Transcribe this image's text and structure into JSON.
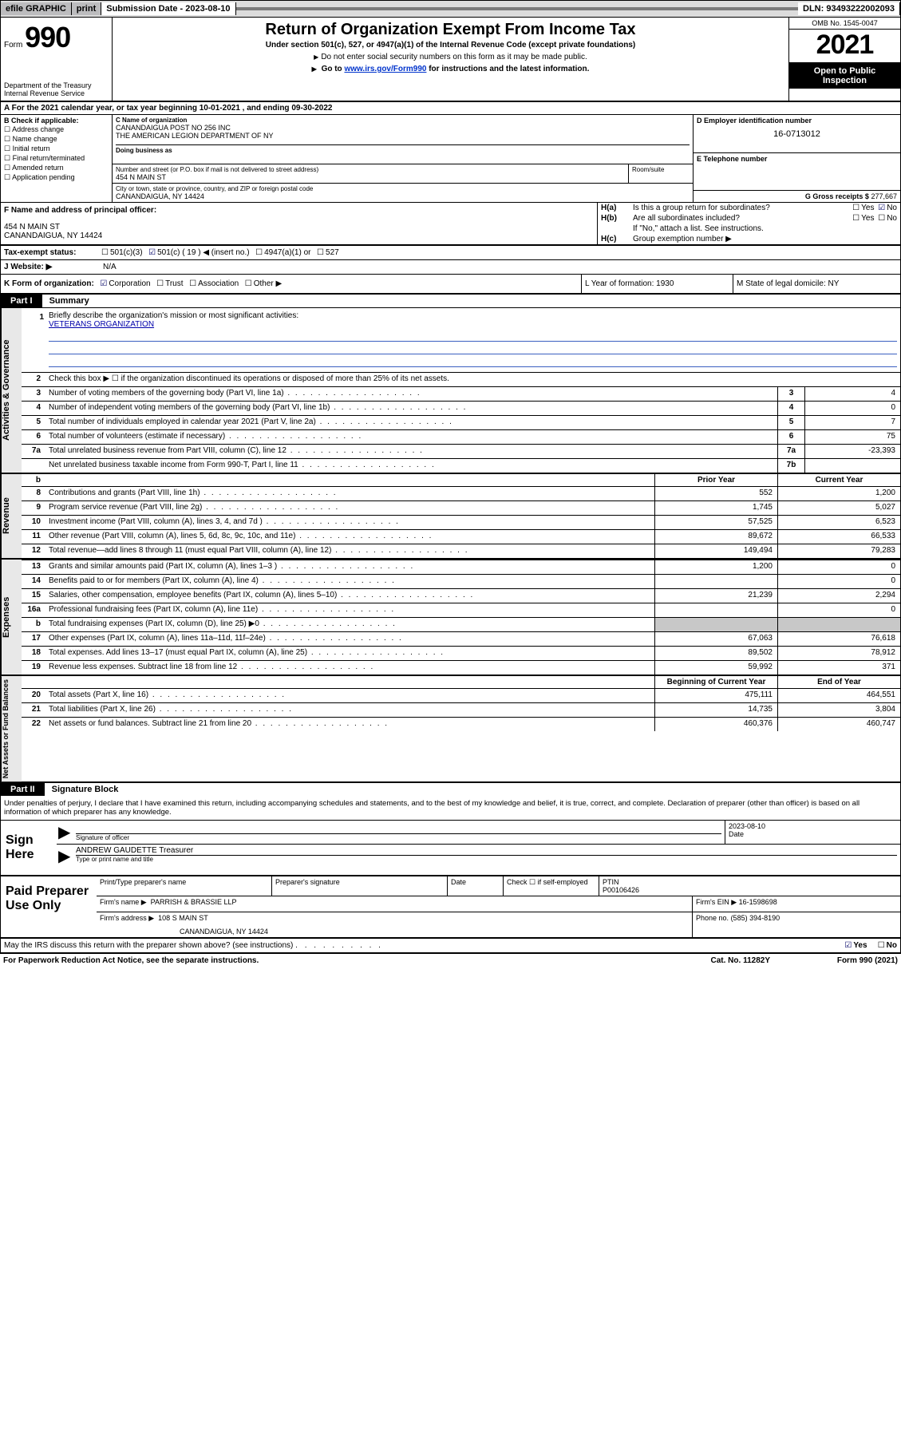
{
  "topbar": {
    "efile": "efile GRAPHIC",
    "print": "print",
    "sub_label": "Submission Date - 2023-08-10",
    "dln": "DLN: 93493222002093"
  },
  "header": {
    "form_word": "Form",
    "form_num": "990",
    "dept": "Department of the Treasury",
    "irs": "Internal Revenue Service",
    "title": "Return of Organization Exempt From Income Tax",
    "sub": "Under section 501(c), 527, or 4947(a)(1) of the Internal Revenue Code (except private foundations)",
    "note1": "Do not enter social security numbers on this form as it may be made public.",
    "note2_pre": "Go to ",
    "note2_link": "www.irs.gov/Form990",
    "note2_post": " for instructions and the latest information.",
    "omb": "OMB No. 1545-0047",
    "year": "2021",
    "open1": "Open to Public",
    "open2": "Inspection"
  },
  "row_a": "A For the 2021 calendar year, or tax year beginning 10-01-2021   , and ending 09-30-2022",
  "col_b": {
    "hdr": "B Check if applicable:",
    "items": [
      "Address change",
      "Name change",
      "Initial return",
      "Final return/terminated",
      "Amended return",
      "Application pending"
    ]
  },
  "col_c": {
    "lbl_name": "C Name of organization",
    "name1": "CANANDAIGUA POST NO 256 INC",
    "name2": "THE AMERICAN LEGION DEPARTMENT OF NY",
    "lbl_dba": "Doing business as",
    "lbl_addr": "Number and street (or P.O. box if mail is not delivered to street address)",
    "addr": "454 N MAIN ST",
    "lbl_room": "Room/suite",
    "lbl_city": "City or town, state or province, country, and ZIP or foreign postal code",
    "city": "CANANDAIGUA, NY  14424"
  },
  "col_d": {
    "lbl": "D Employer identification number",
    "val": "16-0713012"
  },
  "col_e": {
    "lbl": "E Telephone number",
    "val": ""
  },
  "col_g": {
    "lbl": "G Gross receipts $",
    "val": "277,667"
  },
  "col_f": {
    "lbl": "F Name and address of principal officer:",
    "l1": "454 N MAIN ST",
    "l2": "CANANDAIGUA, NY  14424"
  },
  "col_h": {
    "ha_k": "H(a)",
    "ha_q": "Is this a group return for subordinates?",
    "ha_yes": "Yes",
    "ha_no": "No",
    "hb_k": "H(b)",
    "hb_q": "Are all subordinates included?",
    "hb_yes": "Yes",
    "hb_no": "No",
    "hb_note": "If \"No,\" attach a list. See instructions.",
    "hc_k": "H(c)",
    "hc_q": "Group exemption number ▶"
  },
  "row_i": {
    "lbl": "Tax-exempt status:",
    "o1": "501(c)(3)",
    "o2": "501(c) ( 19 ) ◀ (insert no.)",
    "o3": "4947(a)(1) or",
    "o4": "527"
  },
  "row_j": {
    "lbl": "J   Website: ▶",
    "val": "N/A"
  },
  "row_k": {
    "lbl": "K Form of organization:",
    "o1": "Corporation",
    "o2": "Trust",
    "o3": "Association",
    "o4": "Other ▶"
  },
  "row_l": {
    "txt": "L Year of formation: 1930"
  },
  "row_m": {
    "txt": "M State of legal domicile: NY"
  },
  "part1": {
    "hdr": "Part I",
    "title": "Summary"
  },
  "sections": {
    "gov": "Activities & Governance",
    "rev": "Revenue",
    "exp": "Expenses",
    "net": "Net Assets or Fund Balances"
  },
  "mission": {
    "num": "1",
    "lbl": "Briefly describe the organization's mission or most significant activities:",
    "txt": "VETERANS ORGANIZATION"
  },
  "line2": {
    "num": "2",
    "txt": "Check this box ▶ ☐  if the organization discontinued its operations or disposed of more than 25% of its net assets."
  },
  "gov_lines": [
    {
      "num": "3",
      "txt": "Number of voting members of the governing body (Part VI, line 1a)",
      "box": "3",
      "val": "4"
    },
    {
      "num": "4",
      "txt": "Number of independent voting members of the governing body (Part VI, line 1b)",
      "box": "4",
      "val": "0"
    },
    {
      "num": "5",
      "txt": "Total number of individuals employed in calendar year 2021 (Part V, line 2a)",
      "box": "5",
      "val": "7"
    },
    {
      "num": "6",
      "txt": "Total number of volunteers (estimate if necessary)",
      "box": "6",
      "val": "75"
    },
    {
      "num": "7a",
      "txt": "Total unrelated business revenue from Part VIII, column (C), line 12",
      "box": "7a",
      "val": "-23,393"
    },
    {
      "num": "",
      "txt": "Net unrelated business taxable income from Form 990-T, Part I, line 11",
      "box": "7b",
      "val": ""
    }
  ],
  "col_hdrs": {
    "b": "b",
    "prior": "Prior Year",
    "curr": "Current Year"
  },
  "rev_lines": [
    {
      "num": "8",
      "txt": "Contributions and grants (Part VIII, line 1h)",
      "p": "552",
      "c": "1,200"
    },
    {
      "num": "9",
      "txt": "Program service revenue (Part VIII, line 2g)",
      "p": "1,745",
      "c": "5,027"
    },
    {
      "num": "10",
      "txt": "Investment income (Part VIII, column (A), lines 3, 4, and 7d )",
      "p": "57,525",
      "c": "6,523"
    },
    {
      "num": "11",
      "txt": "Other revenue (Part VIII, column (A), lines 5, 6d, 8c, 9c, 10c, and 11e)",
      "p": "89,672",
      "c": "66,533"
    },
    {
      "num": "12",
      "txt": "Total revenue—add lines 8 through 11 (must equal Part VIII, column (A), line 12)",
      "p": "149,494",
      "c": "79,283"
    }
  ],
  "exp_lines": [
    {
      "num": "13",
      "txt": "Grants and similar amounts paid (Part IX, column (A), lines 1–3 )",
      "p": "1,200",
      "c": "0"
    },
    {
      "num": "14",
      "txt": "Benefits paid to or for members (Part IX, column (A), line 4)",
      "p": "",
      "c": "0"
    },
    {
      "num": "15",
      "txt": "Salaries, other compensation, employee benefits (Part IX, column (A), lines 5–10)",
      "p": "21,239",
      "c": "2,294"
    },
    {
      "num": "16a",
      "txt": "Professional fundraising fees (Part IX, column (A), line 11e)",
      "p": "",
      "c": "0"
    },
    {
      "num": "b",
      "txt": "Total fundraising expenses (Part IX, column (D), line 25) ▶0",
      "p": "",
      "c": "",
      "shade": true
    },
    {
      "num": "17",
      "txt": "Other expenses (Part IX, column (A), lines 11a–11d, 11f–24e)",
      "p": "67,063",
      "c": "76,618"
    },
    {
      "num": "18",
      "txt": "Total expenses. Add lines 13–17 (must equal Part IX, column (A), line 25)",
      "p": "89,502",
      "c": "78,912"
    },
    {
      "num": "19",
      "txt": "Revenue less expenses. Subtract line 18 from line 12",
      "p": "59,992",
      "c": "371"
    }
  ],
  "net_hdrs": {
    "beg": "Beginning of Current Year",
    "end": "End of Year"
  },
  "net_lines": [
    {
      "num": "20",
      "txt": "Total assets (Part X, line 16)",
      "p": "475,111",
      "c": "464,551"
    },
    {
      "num": "21",
      "txt": "Total liabilities (Part X, line 26)",
      "p": "14,735",
      "c": "3,804"
    },
    {
      "num": "22",
      "txt": "Net assets or fund balances. Subtract line 21 from line 20",
      "p": "460,376",
      "c": "460,747"
    }
  ],
  "part2": {
    "hdr": "Part II",
    "title": "Signature Block"
  },
  "penalty": "Under penalties of perjury, I declare that I have examined this return, including accompanying schedules and statements, and to the best of my knowledge and belief, it is true, correct, and complete. Declaration of preparer (other than officer) is based on all information of which preparer has any knowledge.",
  "sign": {
    "here": "Sign Here",
    "sig_lbl": "Signature of officer",
    "date": "2023-08-10",
    "date_lbl": "Date",
    "name": "ANDREW GAUDETTE Treasurer",
    "name_lbl": "Type or print name and title"
  },
  "prep": {
    "title": "Paid Preparer Use Only",
    "h_name": "Print/Type preparer's name",
    "h_sig": "Preparer's signature",
    "h_date": "Date",
    "h_check": "Check ☐ if self-employed",
    "h_ptin_lbl": "PTIN",
    "h_ptin": "P00106426",
    "firm_lbl": "Firm's name    ▶",
    "firm": "PARRISH & BRASSIE LLP",
    "ein_lbl": "Firm's EIN ▶",
    "ein": "16-1598698",
    "addr_lbl": "Firm's address ▶",
    "addr1": "108 S MAIN ST",
    "addr2": "CANANDAIGUA, NY  14424",
    "phone_lbl": "Phone no.",
    "phone": "(585) 394-8190"
  },
  "footer": {
    "discuss": "May the IRS discuss this return with the preparer shown above? (see instructions)",
    "yes": "Yes",
    "no": "No",
    "pra": "For Paperwork Reduction Act Notice, see the separate instructions.",
    "cat": "Cat. No. 11282Y",
    "form": "Form 990 (2021)"
  }
}
